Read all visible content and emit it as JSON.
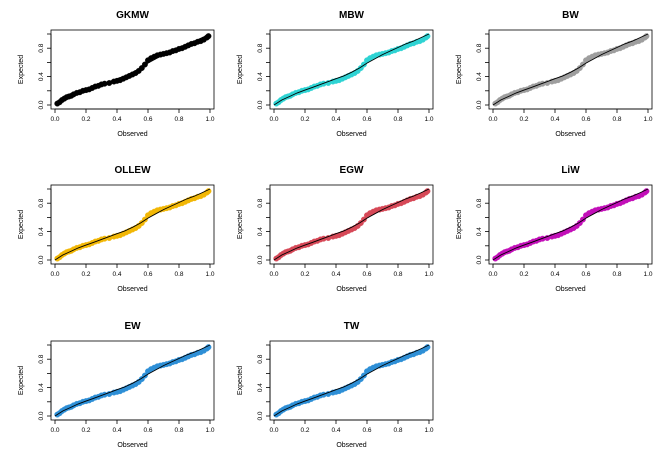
{
  "figure": {
    "x_axis_label": "Observed",
    "y_axis_label": "Expected",
    "x_ticks": [
      "0.0",
      "0.2",
      "0.4",
      "0.6",
      "0.8",
      "1.0"
    ],
    "y_ticks": [
      "0.0",
      "0.4",
      "0.8"
    ]
  },
  "chart_data": [
    {
      "type": "scatter",
      "title": "GKMW",
      "color": "#000000",
      "xlabel": "Observed",
      "ylabel": "Expected",
      "xlim": [
        0,
        1
      ],
      "ylim": [
        0,
        1
      ]
    },
    {
      "type": "scatter",
      "title": "MBW",
      "color": "#2ED3D3",
      "xlabel": "Observed",
      "ylabel": "Expected",
      "xlim": [
        0,
        1
      ],
      "ylim": [
        0,
        1
      ]
    },
    {
      "type": "scatter",
      "title": "BW",
      "color": "#9E9E9E",
      "xlabel": "Observed",
      "ylabel": "Expected",
      "xlim": [
        0,
        1
      ],
      "ylim": [
        0,
        1
      ]
    },
    {
      "type": "scatter",
      "title": "OLLEW",
      "color": "#F2B705",
      "xlabel": "Observed",
      "ylabel": "Expected",
      "xlim": [
        0,
        1
      ],
      "ylim": [
        0,
        1
      ]
    },
    {
      "type": "scatter",
      "title": "EGW",
      "color": "#D64857",
      "xlabel": "Observed",
      "ylabel": "Expected",
      "xlim": [
        0,
        1
      ],
      "ylim": [
        0,
        1
      ]
    },
    {
      "type": "scatter",
      "title": "LiW",
      "color": "#C20FB8",
      "xlabel": "Observed",
      "ylabel": "Expected",
      "xlim": [
        0,
        1
      ],
      "ylim": [
        0,
        1
      ]
    },
    {
      "type": "scatter",
      "title": "EW",
      "color": "#2E8FD6",
      "xlabel": "Observed",
      "ylabel": "Expected",
      "xlim": [
        0,
        1
      ],
      "ylim": [
        0,
        1
      ]
    },
    {
      "type": "scatter",
      "title": "TW",
      "color": "#2E8FD6",
      "xlabel": "Observed",
      "ylabel": "Expected",
      "xlim": [
        0,
        1
      ],
      "ylim": [
        0,
        1
      ]
    }
  ],
  "points": {
    "x": [
      0.015,
      0.03,
      0.045,
      0.06,
      0.075,
      0.09,
      0.105,
      0.12,
      0.14,
      0.16,
      0.18,
      0.2,
      0.22,
      0.24,
      0.26,
      0.28,
      0.3,
      0.32,
      0.35,
      0.38,
      0.4,
      0.42,
      0.44,
      0.46,
      0.48,
      0.5,
      0.52,
      0.54,
      0.56,
      0.58,
      0.6,
      0.62,
      0.64,
      0.66,
      0.68,
      0.7,
      0.72,
      0.74,
      0.76,
      0.78,
      0.8,
      0.82,
      0.84,
      0.86,
      0.88,
      0.9,
      0.92,
      0.94,
      0.96,
      0.98,
      0.99
    ],
    "y": [
      0.02,
      0.04,
      0.07,
      0.09,
      0.11,
      0.12,
      0.13,
      0.15,
      0.17,
      0.18,
      0.2,
      0.21,
      0.22,
      0.24,
      0.26,
      0.27,
      0.29,
      0.3,
      0.31,
      0.33,
      0.34,
      0.35,
      0.37,
      0.39,
      0.41,
      0.43,
      0.45,
      0.48,
      0.52,
      0.57,
      0.63,
      0.66,
      0.68,
      0.7,
      0.71,
      0.72,
      0.73,
      0.74,
      0.76,
      0.77,
      0.79,
      0.8,
      0.82,
      0.84,
      0.86,
      0.87,
      0.89,
      0.9,
      0.92,
      0.95,
      0.97
    ]
  },
  "curve": {
    "x": [
      0,
      0.05,
      0.1,
      0.15,
      0.2,
      0.25,
      0.3,
      0.35,
      0.4,
      0.45,
      0.5,
      0.55,
      0.6,
      0.65,
      0.7,
      0.75,
      0.8,
      0.85,
      0.9,
      0.95,
      1.0
    ],
    "y": [
      0.0,
      0.07,
      0.12,
      0.17,
      0.21,
      0.25,
      0.29,
      0.33,
      0.37,
      0.41,
      0.46,
      0.52,
      0.59,
      0.65,
      0.71,
      0.76,
      0.81,
      0.86,
      0.9,
      0.95,
      1.0
    ]
  }
}
